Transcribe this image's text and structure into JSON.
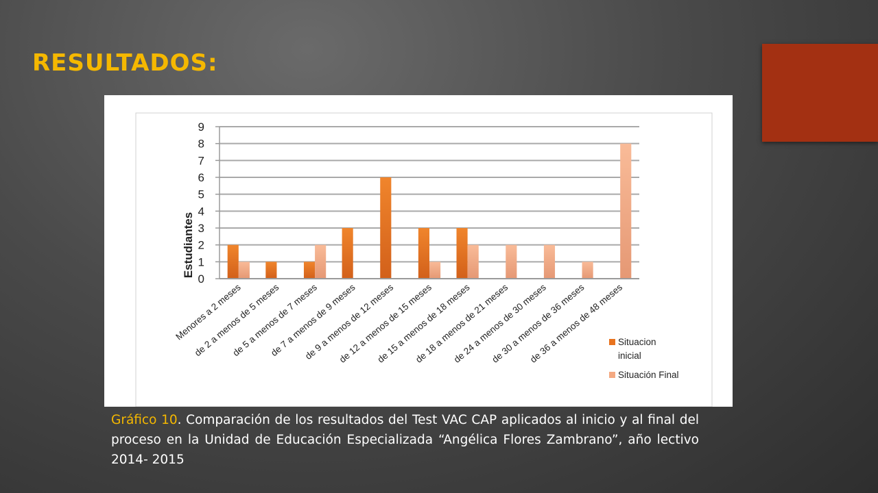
{
  "slide": {
    "title": "RESULTADOS:",
    "accent_color": "#a33012"
  },
  "caption": {
    "label": "Gráfico 10",
    "text": ". Comparación de los resultados del Test VAC CAP aplicados al inicio y al final del proceso en la Unidad de Educación Especializada “Angélica Flores Zambrano”, año lectivo 2014- 2015"
  },
  "chart_data": {
    "type": "bar",
    "title": "",
    "xlabel": "",
    "ylabel": "Estudiantes",
    "ylim": [
      0,
      9
    ],
    "yticks": [
      0,
      1,
      2,
      3,
      4,
      5,
      6,
      7,
      8,
      9
    ],
    "grid": true,
    "legend_position": "right",
    "categories": [
      "Menores a 2 meses",
      "de 2 a menos de 5 meses",
      "de 5 a menos de 7 meses",
      "de 7 a menos de 9 meses",
      "de 9 a menos de 12 meses",
      "de 12 a menos de 15 meses",
      "de 15 a menos de 18 meses",
      "de 18 a menos de 21 meses",
      "de 24 a menos de 30 meses",
      "de 30 a menos de 36 meses",
      "de 36 a menos de 48 meses"
    ],
    "series": [
      {
        "name": "Situacion inicial",
        "color": "#e8731e",
        "values": [
          2,
          1,
          1,
          3,
          6,
          3,
          3,
          0,
          0,
          0,
          0
        ]
      },
      {
        "name": "Situación Final",
        "color": "#f4a982",
        "values": [
          1,
          0,
          2,
          0,
          0,
          1,
          2,
          2,
          2,
          1,
          8
        ]
      }
    ]
  }
}
